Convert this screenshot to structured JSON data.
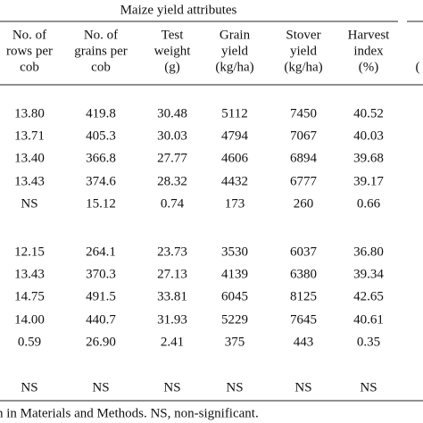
{
  "table": {
    "group_title": "Maize yield attributes",
    "columns": [
      [
        "No. of",
        "rows per",
        "cob"
      ],
      [
        "No. of",
        "grains per",
        "cob"
      ],
      [
        "Test",
        "weight",
        "(g)"
      ],
      [
        "Grain",
        "yield",
        "(kg/ha)"
      ],
      [
        "Stover",
        "yield",
        "(kg/ha)"
      ],
      [
        "Harvest",
        "index",
        "(%)"
      ]
    ],
    "cut_header": "(",
    "rows": [
      [
        "13.80",
        "419.8",
        "30.48",
        "5112",
        "7450",
        "40.52"
      ],
      [
        "13.71",
        "405.3",
        "30.03",
        "4794",
        "7067",
        "40.03"
      ],
      [
        "13.40",
        "366.8",
        "27.77",
        "4606",
        "6894",
        "39.68"
      ],
      [
        "13.43",
        "374.6",
        "28.32",
        "4432",
        "6777",
        "39.17"
      ],
      [
        "NS",
        "15.12",
        "0.74",
        "173",
        "260",
        "0.66"
      ],
      [
        "12.15",
        "264.1",
        "23.73",
        "3530",
        "6037",
        "36.80"
      ],
      [
        "13.43",
        "370.3",
        "27.13",
        "4139",
        "6380",
        "39.34"
      ],
      [
        "14.75",
        "491.5",
        "33.81",
        "6045",
        "8125",
        "42.65"
      ],
      [
        "14.00",
        "440.7",
        "31.93",
        "5229",
        "7645",
        "40.61"
      ],
      [
        "0.59",
        "26.90",
        "2.41",
        "375",
        "443",
        "0.35"
      ],
      [
        "NS",
        "NS",
        "NS",
        "NS",
        "NS",
        "NS"
      ]
    ],
    "footnote": "n in Materials and Methods. NS, non-significant."
  }
}
